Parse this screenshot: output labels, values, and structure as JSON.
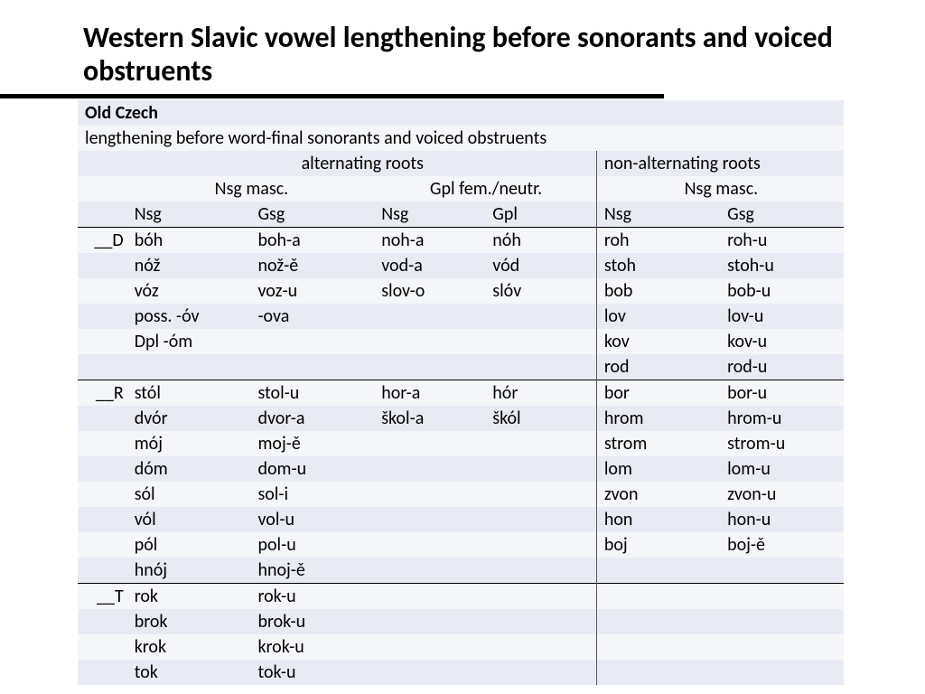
{
  "colors": {
    "row_alt_a": "#e9ebf4",
    "row_alt_b": "#f5f6fa",
    "title_color": "#000000",
    "rule_color": "#000000",
    "vdiv_color": "#4f556b",
    "bg": "#ffffff"
  },
  "fonts": {
    "title_pt": 32,
    "body_pt": 20,
    "family": "Calibri"
  },
  "title": "Western Slavic vowel lengthening before sonorants and voiced obstruents",
  "header": {
    "language": "Old Czech",
    "description": "lengthening before word-final sonorants and voiced obstruents",
    "group_alt": "alternating roots",
    "group_nonalt": "non-alternating roots",
    "sub_nsg_masc": "Nsg masc.",
    "sub_gpl_fn": "Gpl fem./neutr.",
    "col_nsg": "Nsg",
    "col_gsg": "Gsg",
    "col_gpl": "Gpl"
  },
  "sections": [
    {
      "label": "__D",
      "rows": [
        {
          "alt": [
            "bóh",
            "boh-a",
            "noh-a",
            "nóh"
          ],
          "non": [
            "roh",
            "roh-u"
          ]
        },
        {
          "alt": [
            "nóž",
            "nož-ě",
            "vod-a",
            "vód"
          ],
          "non": [
            "stoh",
            "stoh-u"
          ]
        },
        {
          "alt": [
            "vóz",
            "voz-u",
            "slov-o",
            "slóv"
          ],
          "non": [
            "bob",
            "bob-u"
          ]
        },
        {
          "alt": [
            "poss. -óv",
            "-ova",
            "",
            ""
          ],
          "non": [
            "lov",
            "lov-u"
          ]
        },
        {
          "alt": [
            "Dpl -óm",
            "",
            "",
            ""
          ],
          "non": [
            "kov",
            "kov-u"
          ]
        },
        {
          "alt": [
            "",
            "",
            "",
            ""
          ],
          "non": [
            "rod",
            "rod-u"
          ]
        }
      ]
    },
    {
      "label": "__R",
      "rows": [
        {
          "alt": [
            "stól",
            "stol-u",
            "hor-a",
            "hór"
          ],
          "non": [
            "bor",
            "bor-u"
          ]
        },
        {
          "alt": [
            "dvór",
            "dvor-a",
            "škol-a",
            "škól"
          ],
          "non": [
            "hrom",
            "hrom-u"
          ]
        },
        {
          "alt": [
            "mój",
            "moj-ě",
            "",
            ""
          ],
          "non": [
            "strom",
            "strom-u"
          ]
        },
        {
          "alt": [
            "dóm",
            "dom-u",
            "",
            ""
          ],
          "non": [
            "lom",
            "lom-u"
          ]
        },
        {
          "alt": [
            "sól",
            "sol-i",
            "",
            ""
          ],
          "non": [
            "zvon",
            "zvon-u"
          ]
        },
        {
          "alt": [
            "vól",
            "vol-u",
            "",
            ""
          ],
          "non": [
            "hon",
            "hon-u"
          ]
        },
        {
          "alt": [
            "pól",
            "pol-u",
            "",
            ""
          ],
          "non": [
            "boj",
            "boj-ě"
          ]
        },
        {
          "alt": [
            "hnój",
            "hnoj-ě",
            "",
            ""
          ],
          "non": [
            "",
            ""
          ]
        }
      ]
    },
    {
      "label": "__T",
      "rows": [
        {
          "alt": [
            "rok",
            "rok-u",
            "",
            ""
          ],
          "non": [
            "",
            ""
          ]
        },
        {
          "alt": [
            "brok",
            "brok-u",
            "",
            ""
          ],
          "non": [
            "",
            ""
          ]
        },
        {
          "alt": [
            "krok",
            "krok-u",
            "",
            ""
          ],
          "non": [
            "",
            ""
          ]
        },
        {
          "alt": [
            "tok",
            "tok-u",
            "",
            ""
          ],
          "non": [
            "",
            ""
          ]
        }
      ]
    }
  ]
}
